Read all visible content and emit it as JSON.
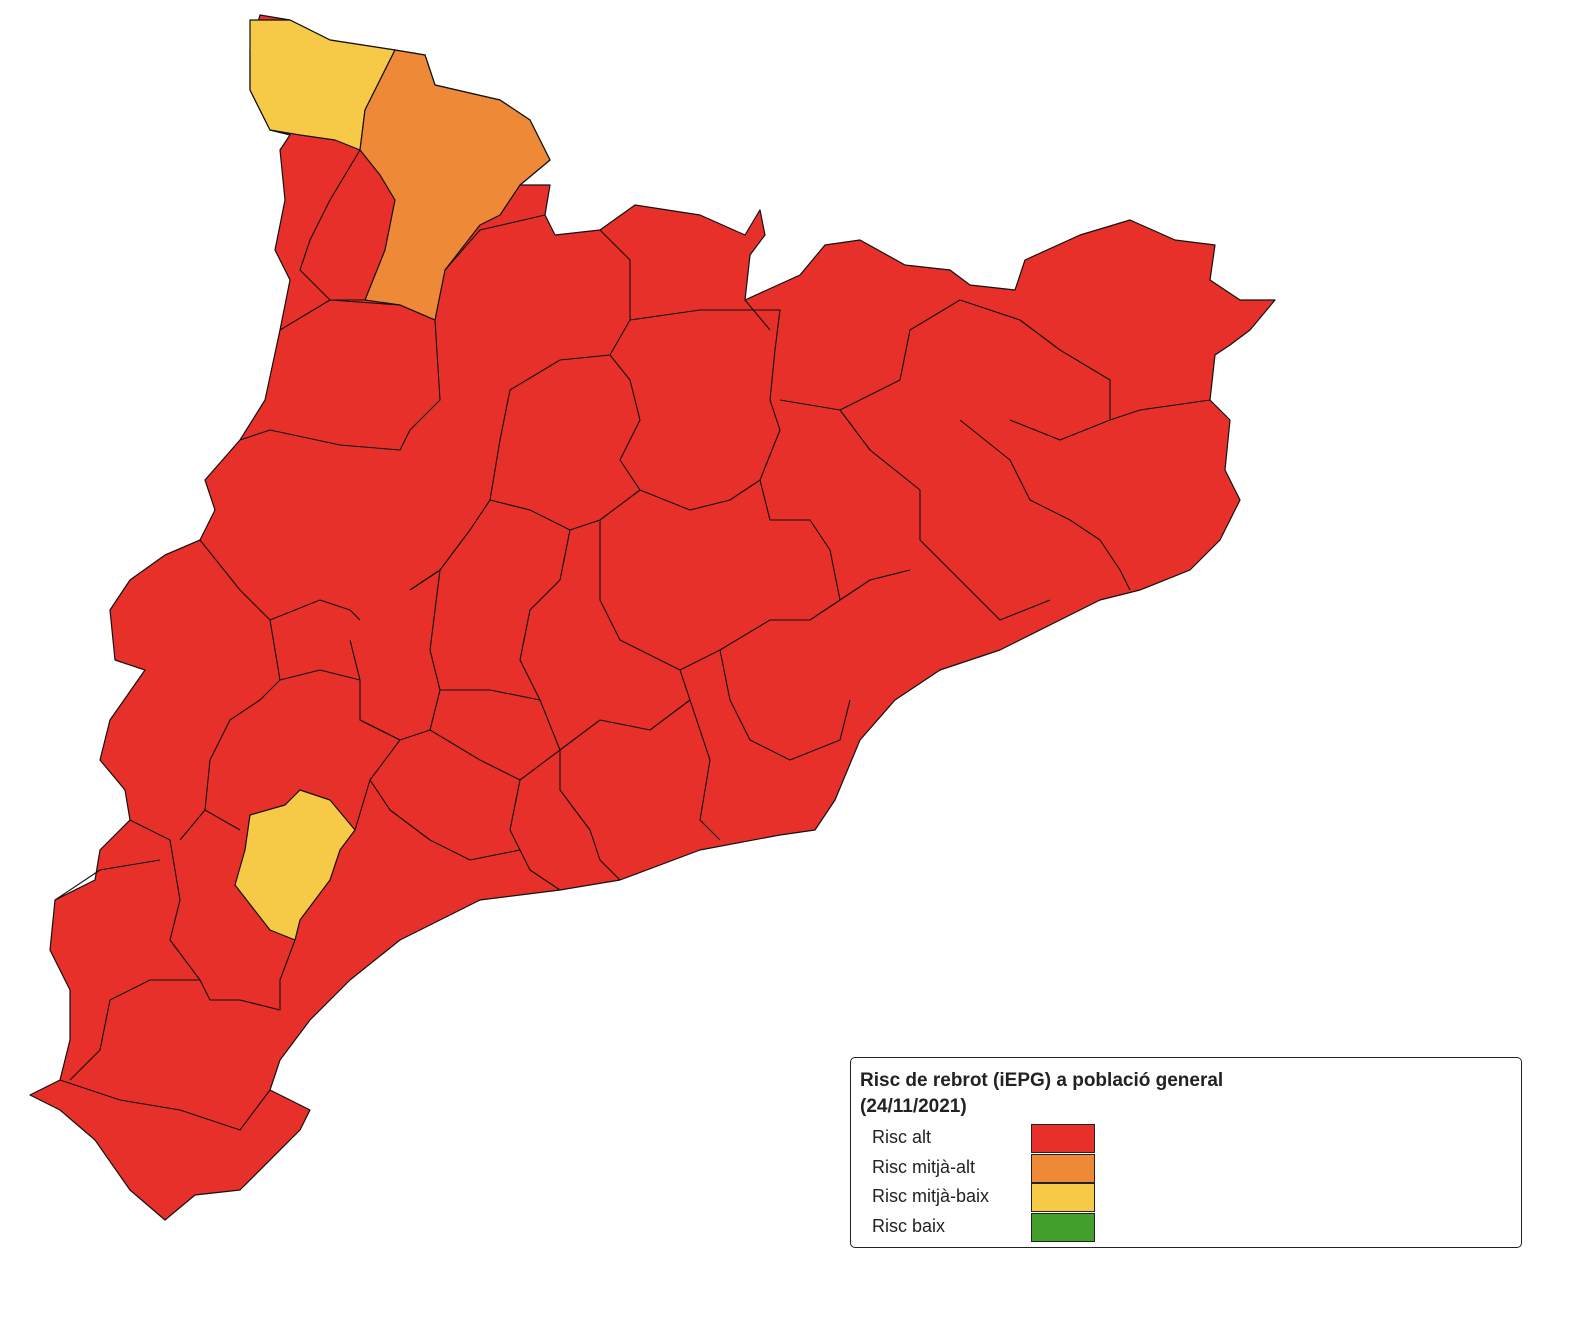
{
  "legend": {
    "title": "Risc de rebrot (iEPG) a població general",
    "subtitle": "(24/11/2021)",
    "items": [
      {
        "label": "Risc alt",
        "color": "#e8302a"
      },
      {
        "label": "Risc mitjà-alt",
        "color": "#ee8a37"
      },
      {
        "label": "Risc mitjà-baix",
        "color": "#f6ca47"
      },
      {
        "label": "Risc baix",
        "color": "#43a02c"
      }
    ]
  }
}
